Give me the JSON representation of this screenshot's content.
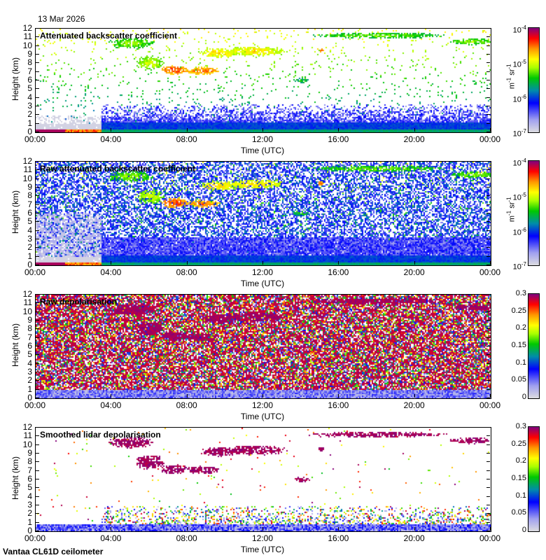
{
  "date": "13 Mar 2026",
  "footer": "Vantaa CL61D ceilometer",
  "chart_data": [
    {
      "type": "heatmap",
      "title": "Attenuated backscatter coefficient",
      "mode": "bs",
      "xlabel": "Time (UTC)",
      "ylabel": "Height (km)",
      "xticks": [
        "00:00",
        "04:00",
        "08:00",
        "12:00",
        "16:00",
        "20:00",
        "00:00"
      ],
      "yticks": [
        "0",
        "1",
        "2",
        "3",
        "4",
        "5",
        "6",
        "7",
        "8",
        "9",
        "10",
        "11",
        "12"
      ],
      "xlim_hours": [
        0,
        24
      ],
      "ylim_km": [
        0,
        12
      ],
      "colorbar": {
        "scale": "log",
        "range": [
          1e-07,
          0.0001
        ],
        "ticks": [
          {
            "b": "10",
            "e": "-7"
          },
          {
            "b": "10",
            "e": "-6"
          },
          {
            "b": "10",
            "e": "-5"
          },
          {
            "b": "10",
            "e": "-4"
          }
        ],
        "unit": "m-1 sr-1"
      }
    },
    {
      "type": "heatmap",
      "title": "Raw attenuated backscatter coefficient",
      "mode": "raw",
      "xlabel": "Time (UTC)",
      "ylabel": "Height (km)",
      "xticks": [
        "00:00",
        "04:00",
        "08:00",
        "12:00",
        "16:00",
        "20:00",
        "00:00"
      ],
      "yticks": [
        "0",
        "1",
        "2",
        "3",
        "4",
        "5",
        "6",
        "7",
        "8",
        "9",
        "10",
        "11",
        "12"
      ],
      "xlim_hours": [
        0,
        24
      ],
      "ylim_km": [
        0,
        12
      ],
      "colorbar": {
        "scale": "log",
        "range": [
          1e-07,
          0.0001
        ],
        "ticks": [
          {
            "b": "10",
            "e": "-7"
          },
          {
            "b": "10",
            "e": "-6"
          },
          {
            "b": "10",
            "e": "-5"
          },
          {
            "b": "10",
            "e": "-4"
          }
        ],
        "unit": "m-1 sr-1"
      }
    },
    {
      "type": "heatmap",
      "title": "Raw depolarisation",
      "mode": "rawdepol",
      "xlabel": "Time (UTC)",
      "ylabel": "Height (km)",
      "xticks": [
        "00:00",
        "04:00",
        "08:00",
        "12:00",
        "16:00",
        "20:00",
        "00:00"
      ],
      "yticks": [
        "0",
        "1",
        "2",
        "3",
        "4",
        "5",
        "6",
        "7",
        "8",
        "9",
        "10",
        "11",
        "12"
      ],
      "xlim_hours": [
        0,
        24
      ],
      "ylim_km": [
        0,
        12
      ],
      "colorbar": {
        "scale": "linear",
        "range": [
          0,
          0.3
        ],
        "ticks": [
          {
            "b": "0"
          },
          {
            "b": "0.05"
          },
          {
            "b": "0.1"
          },
          {
            "b": "0.15"
          },
          {
            "b": "0.2"
          },
          {
            "b": "0.25"
          },
          {
            "b": "0.3"
          }
        ]
      }
    },
    {
      "type": "heatmap",
      "title": "Smoothed lidar depolarisation",
      "mode": "depol",
      "xlabel": "Time (UTC)",
      "ylabel": "Height (km)",
      "xticks": [
        "00:00",
        "04:00",
        "08:00",
        "12:00",
        "16:00",
        "20:00",
        "00:00"
      ],
      "yticks": [
        "0",
        "1",
        "2",
        "3",
        "4",
        "5",
        "6",
        "7",
        "8",
        "9",
        "10",
        "11",
        "12"
      ],
      "xlim_hours": [
        0,
        24
      ],
      "ylim_km": [
        0,
        12
      ],
      "colorbar": {
        "scale": "linear",
        "range": [
          0,
          0.3
        ],
        "ticks": [
          {
            "b": "0"
          },
          {
            "b": "0.05"
          },
          {
            "b": "0.1"
          },
          {
            "b": "0.15"
          },
          {
            "b": "0.2"
          },
          {
            "b": "0.25"
          },
          {
            "b": "0.3"
          }
        ]
      }
    }
  ],
  "cloud_features": [
    {
      "t": 5.0,
      "tw": 1.3,
      "h": 10.3,
      "hw": 0.7,
      "bs": 0.62,
      "depol": 0.95
    },
    {
      "t": 6.0,
      "tw": 0.8,
      "h": 8.0,
      "hw": 0.9,
      "bs": 0.68,
      "depol": 0.95
    },
    {
      "t": 7.3,
      "tw": 0.8,
      "h": 7.2,
      "hw": 0.6,
      "bs": 0.88,
      "depol": 0.95
    },
    {
      "t": 8.8,
      "tw": 1.0,
      "h": 7.1,
      "hw": 0.5,
      "bs": 0.84,
      "depol": 0.95
    },
    {
      "t": 9.6,
      "tw": 1.0,
      "h": 9.2,
      "hw": 0.6,
      "bs": 0.76,
      "depol": 0.95
    },
    {
      "t": 11.5,
      "tw": 1.8,
      "h": 9.4,
      "hw": 0.6,
      "bs": 0.74,
      "depol": 0.95
    },
    {
      "t": 14.0,
      "tw": 0.5,
      "h": 6.0,
      "hw": 0.3,
      "bs": 0.55,
      "depol": 0.95
    },
    {
      "t": 15.0,
      "tw": 0.2,
      "h": 9.5,
      "hw": 0.3,
      "bs": 0.85,
      "depol": 0.95
    },
    {
      "t": 18.0,
      "tw": 4.0,
      "h": 11.2,
      "hw": 0.35,
      "bs": 0.6,
      "depol": 0.95
    },
    {
      "t": 23.0,
      "tw": 1.3,
      "h": 10.5,
      "hw": 0.4,
      "bs": 0.62,
      "depol": 0.95
    }
  ]
}
